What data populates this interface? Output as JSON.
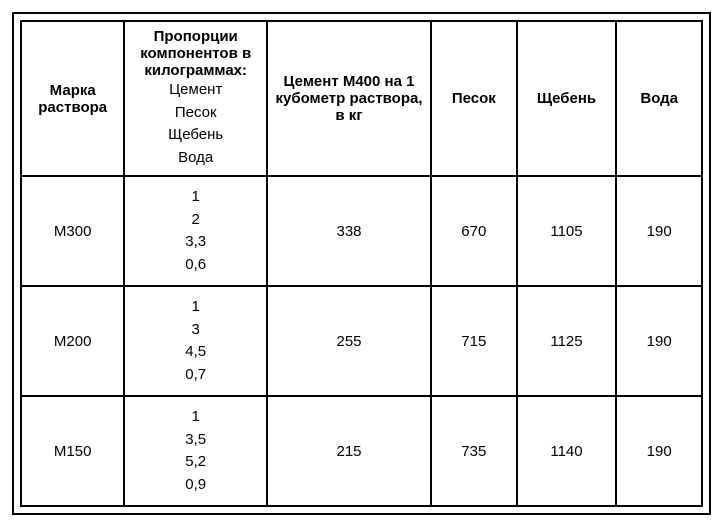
{
  "table": {
    "type": "table",
    "background_color": "#ffffff",
    "border_color": "#000000",
    "border_width": 2,
    "font_family": "Arial",
    "font_size": 15,
    "text_color": "#000000",
    "columns": [
      {
        "key": "marka",
        "header_bold": "Марка раствора",
        "header_sub": "",
        "width_pct": 14.5,
        "align": "center"
      },
      {
        "key": "proportions",
        "header_bold": "Пропорции компонентов в килограммах:",
        "header_sub": "Цемент\nПесок\nЩебень\nВода",
        "width_pct": 20,
        "align": "center"
      },
      {
        "key": "cement",
        "header_bold": "Цемент М400 на 1 кубометр раствора, в кг",
        "header_sub": "",
        "width_pct": 23,
        "align": "center"
      },
      {
        "key": "pesok",
        "header_bold": "Песок",
        "header_sub": "",
        "width_pct": 12,
        "align": "center"
      },
      {
        "key": "sheben",
        "header_bold": "Щебень",
        "header_sub": "",
        "width_pct": 14,
        "align": "center"
      },
      {
        "key": "voda",
        "header_bold": "Вода",
        "header_sub": "",
        "width_pct": 12,
        "align": "center"
      }
    ],
    "rows": [
      {
        "marka": "М300",
        "proportions": "1\n2\n3,3\n0,6",
        "cement": "338",
        "pesok": "670",
        "sheben": "1105",
        "voda": "190"
      },
      {
        "marka": "М200",
        "proportions": "1\n3\n4,5\n0,7",
        "cement": "255",
        "pesok": "715",
        "sheben": "1125",
        "voda": "190"
      },
      {
        "marka": "М150",
        "proportions": "1\n3,5\n5,2\n0,9",
        "cement": "215",
        "pesok": "735",
        "sheben": "1140",
        "voda": "190"
      }
    ]
  }
}
